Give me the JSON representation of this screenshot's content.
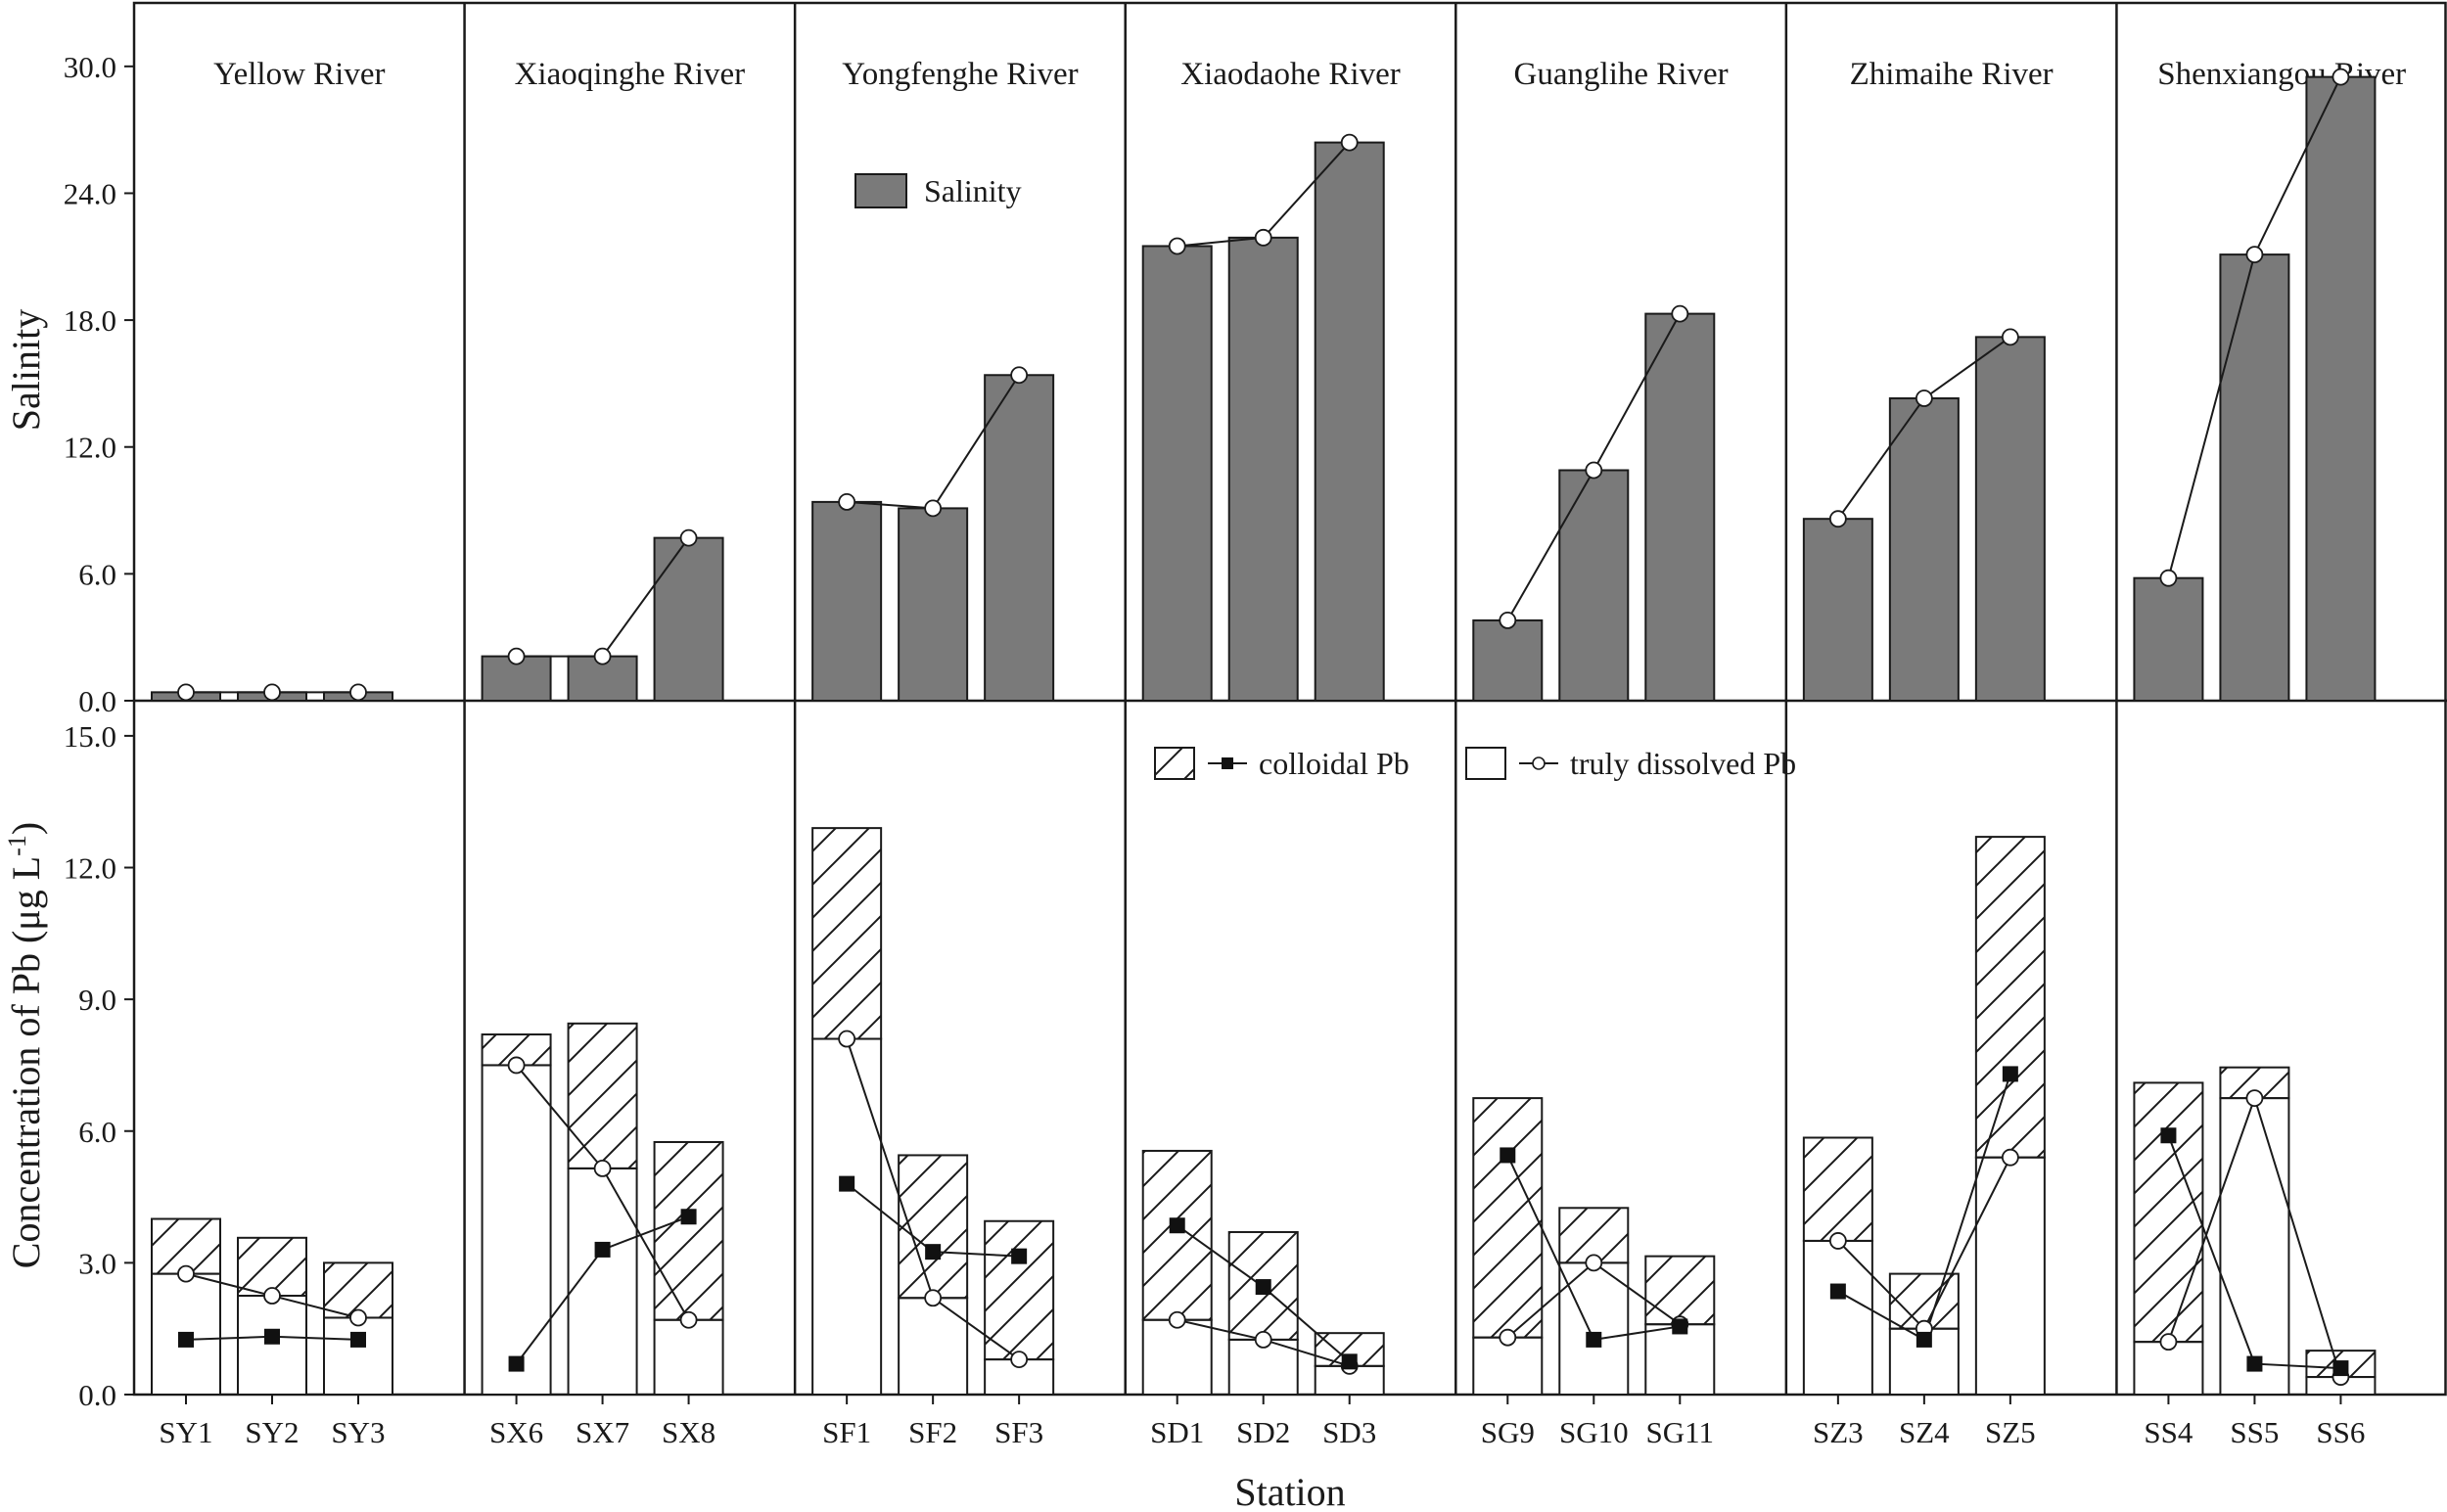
{
  "chart_data": [
    {
      "type": "bar",
      "panel": "top",
      "ylabel": "Salinity",
      "ylim": [
        0,
        33
      ],
      "yticks": [
        "0.0",
        "6.0",
        "12.0",
        "18.0",
        "24.0",
        "30.0"
      ],
      "legend": {
        "bar_label": "Salinity",
        "placement": "top-center"
      },
      "rivers": [
        {
          "name": "Yellow River",
          "stations": [
            "SY1",
            "SY2",
            "SY3"
          ],
          "values": [
            0.4,
            0.4,
            0.4
          ]
        },
        {
          "name": "Xiaoqinghe River",
          "stations": [
            "SX6",
            "SX7",
            "SX8"
          ],
          "values": [
            2.1,
            2.1,
            7.7
          ]
        },
        {
          "name": "Yongfenghe River",
          "stations": [
            "SF1",
            "SF2",
            "SF3"
          ],
          "values": [
            9.4,
            9.1,
            15.4
          ]
        },
        {
          "name": "Xiaodaohe River",
          "stations": [
            "SD1",
            "SD2",
            "SD3"
          ],
          "values": [
            21.5,
            21.9,
            26.4
          ]
        },
        {
          "name": "Guanglihe River",
          "stations": [
            "SG9",
            "SG10",
            "SG11"
          ],
          "values": [
            3.8,
            10.9,
            18.3
          ]
        },
        {
          "name": "Zhimaihe River",
          "stations": [
            "SZ3",
            "SZ4",
            "SZ5"
          ],
          "values": [
            8.6,
            14.3,
            17.2
          ]
        },
        {
          "name": "Shenxiangou River",
          "stations": [
            "SS4",
            "SS5",
            "SS6"
          ],
          "values": [
            5.8,
            21.1,
            29.5
          ]
        }
      ]
    },
    {
      "type": "bar",
      "panel": "bottom",
      "stacked": true,
      "ylabel_main": "Concentration of Pb (μg L",
      "ylabel_sup": "-1",
      "ylabel_close": ")",
      "xlabel": "Station",
      "ylim": [
        0,
        15.8
      ],
      "yticks": [
        "0.0",
        "3.0",
        "6.0",
        "9.0",
        "12.0",
        "15.0"
      ],
      "legend": {
        "colloidal_label": "colloidal Pb",
        "dissolved_label": "truly dissolved Pb",
        "placement": "top-center"
      },
      "rivers": [
        {
          "name": "Yellow River",
          "stations": [
            "SY1",
            "SY2",
            "SY3"
          ],
          "truly_dissolved": [
            2.75,
            2.25,
            1.75
          ],
          "colloidal": [
            1.25,
            1.32,
            1.25
          ]
        },
        {
          "name": "Xiaoqinghe River",
          "stations": [
            "SX6",
            "SX7",
            "SX8"
          ],
          "truly_dissolved": [
            7.5,
            5.15,
            1.7
          ],
          "colloidal": [
            0.7,
            3.3,
            4.05
          ]
        },
        {
          "name": "Yongfenghe River",
          "stations": [
            "SF1",
            "SF2",
            "SF3"
          ],
          "truly_dissolved": [
            8.1,
            2.2,
            0.8
          ],
          "colloidal": [
            4.8,
            3.25,
            3.15
          ]
        },
        {
          "name": "Xiaodaohe River",
          "stations": [
            "SD1",
            "SD2",
            "SD3"
          ],
          "truly_dissolved": [
            1.7,
            1.25,
            0.65
          ],
          "colloidal": [
            3.85,
            2.45,
            0.75
          ]
        },
        {
          "name": "Guanglihe River",
          "stations": [
            "SG9",
            "SG10",
            "SG11"
          ],
          "truly_dissolved": [
            1.3,
            3.0,
            1.6
          ],
          "colloidal": [
            5.45,
            1.25,
            1.55
          ]
        },
        {
          "name": "Zhimaihe River",
          "stations": [
            "SZ3",
            "SZ4",
            "SZ5"
          ],
          "truly_dissolved": [
            3.5,
            1.5,
            5.4
          ],
          "colloidal": [
            2.35,
            1.25,
            7.3
          ]
        },
        {
          "name": "Shenxiangou River",
          "stations": [
            "SS4",
            "SS5",
            "SS6"
          ],
          "truly_dissolved": [
            1.2,
            6.75,
            0.4
          ],
          "colloidal": [
            5.9,
            0.7,
            0.6
          ]
        }
      ]
    }
  ]
}
